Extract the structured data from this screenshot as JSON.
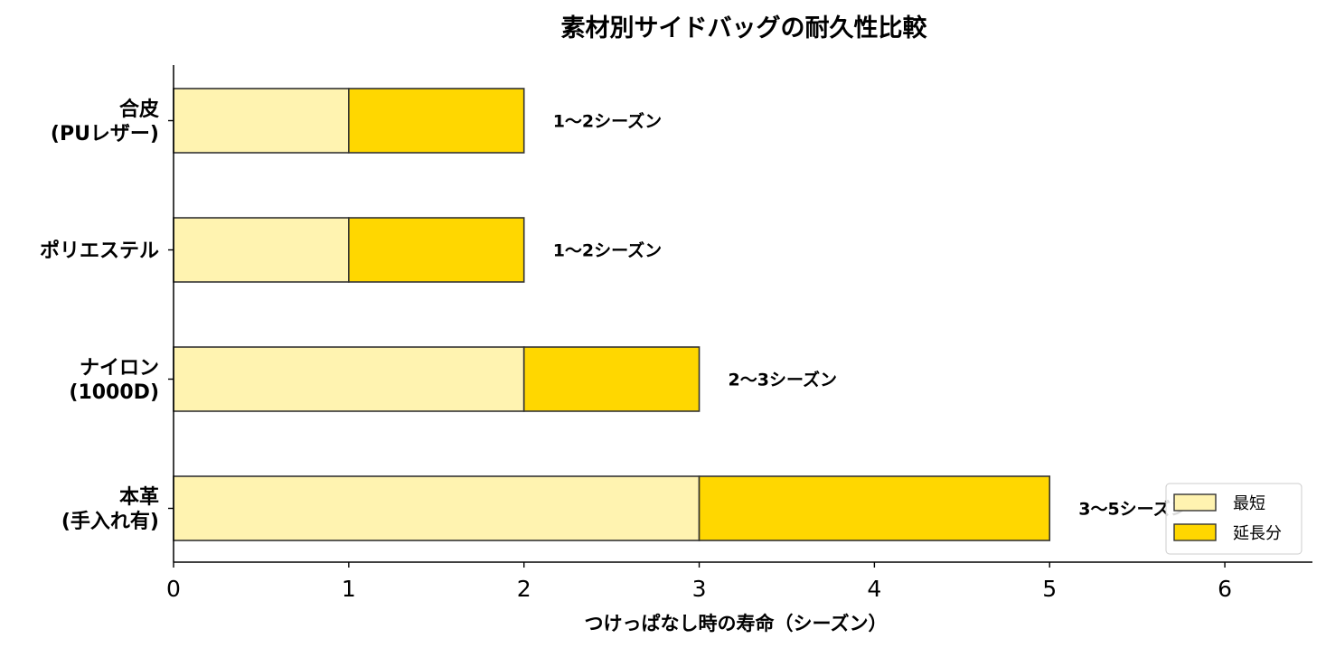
{
  "chart_data": {
    "type": "bar",
    "orientation": "horizontal",
    "stacked": true,
    "title": "素材別サイドバッグの耐久性比較",
    "xlabel": "つけっぱなし時の寿命（シーズン）",
    "ylabel": "",
    "xlim": [
      0,
      6.5
    ],
    "xticks": [
      "0",
      "1",
      "2",
      "3",
      "4",
      "5",
      "6"
    ],
    "grid": false,
    "legend_position": "bottom-right",
    "categories": [
      [
        "合皮",
        "(PUレザー)"
      ],
      [
        "ポリエステル"
      ],
      [
        "ナイロン",
        "(1000D)"
      ],
      [
        "本革",
        "(手入れ有)"
      ]
    ],
    "series": [
      {
        "name": "最短",
        "color": "#FFF3B0",
        "values": [
          1,
          1,
          2,
          3
        ]
      },
      {
        "name": "延長分",
        "color": "#FFD700",
        "values": [
          1,
          1,
          1,
          2
        ]
      }
    ],
    "data_labels": [
      "1〜2シーズン",
      "1〜2シーズン",
      "2〜3シーズン",
      "3〜5シーズン"
    ]
  }
}
